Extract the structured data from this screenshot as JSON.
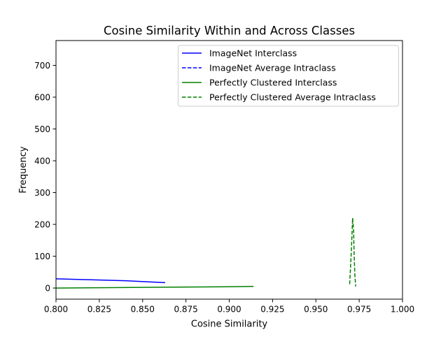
{
  "chart_data": {
    "type": "line",
    "title": "Cosine Similarity Within and Across Classes",
    "xlabel": "Cosine Similarity",
    "ylabel": "Frequency",
    "xlim": [
      0.8,
      1.0
    ],
    "ylim": [
      -35,
      778
    ],
    "xticks": [
      0.8,
      0.825,
      0.85,
      0.875,
      0.9,
      0.925,
      0.95,
      0.975,
      1.0
    ],
    "xtick_labels": [
      "0.800",
      "0.825",
      "0.850",
      "0.875",
      "0.900",
      "0.925",
      "0.950",
      "0.975",
      "1.000"
    ],
    "yticks": [
      0,
      100,
      200,
      300,
      400,
      500,
      600,
      700
    ],
    "ytick_labels": [
      "0",
      "100",
      "200",
      "300",
      "400",
      "500",
      "600",
      "700"
    ],
    "grid": false,
    "legend_position": "top-right",
    "series": [
      {
        "name": "ImageNet Interclass",
        "color": "#0000ff",
        "style": "solid",
        "points": [
          [
            0.79,
            30
          ],
          [
            0.8,
            29
          ],
          [
            0.82,
            26
          ],
          [
            0.84,
            23
          ],
          [
            0.863,
            17
          ]
        ]
      },
      {
        "name": "ImageNet Average Intraclass",
        "color": "#0000ff",
        "style": "dashed",
        "points": []
      },
      {
        "name": "Perfectly Clustered Interclass",
        "color": "#008000",
        "style": "solid",
        "points": [
          [
            0.79,
            0
          ],
          [
            0.8,
            0
          ],
          [
            0.85,
            2
          ],
          [
            0.9,
            4
          ],
          [
            0.914,
            5
          ]
        ]
      },
      {
        "name": "Perfectly Clustered Average Intraclass",
        "color": "#008000",
        "style": "dashed",
        "points": [
          [
            0.9695,
            12
          ],
          [
            0.9705,
            120
          ],
          [
            0.9712,
            220
          ],
          [
            0.9718,
            180
          ],
          [
            0.972,
            120
          ],
          [
            0.9725,
            40
          ],
          [
            0.973,
            5
          ]
        ]
      }
    ]
  }
}
